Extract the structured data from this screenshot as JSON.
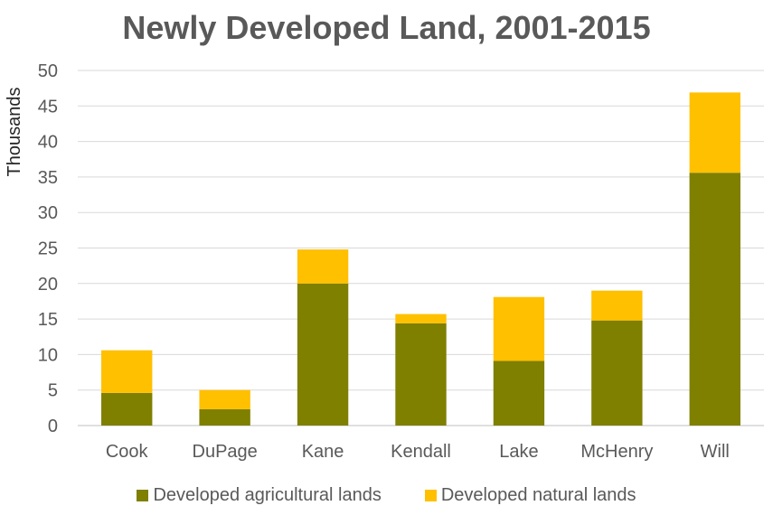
{
  "chart_data": {
    "type": "bar",
    "stacked": true,
    "title": "Newly Developed Land, 2001-2015",
    "xlabel": "",
    "ylabel": "Thousands",
    "ylim": [
      0,
      50
    ],
    "yticks": [
      0,
      5,
      10,
      15,
      20,
      25,
      30,
      35,
      40,
      45,
      50
    ],
    "grid": true,
    "legend_position": "bottom",
    "categories": [
      "Cook",
      "DuPage",
      "Kane",
      "Kendall",
      "Lake",
      "McHenry",
      "Will"
    ],
    "series": [
      {
        "name": "Developed agricultural lands",
        "color": "#7F7F00",
        "values": [
          4.6,
          2.3,
          20.0,
          14.4,
          9.1,
          14.8,
          35.6
        ]
      },
      {
        "name": "Developed natural lands",
        "color": "#FFC000",
        "values": [
          6.0,
          2.7,
          4.8,
          1.3,
          9.0,
          4.2,
          11.3
        ]
      }
    ]
  }
}
